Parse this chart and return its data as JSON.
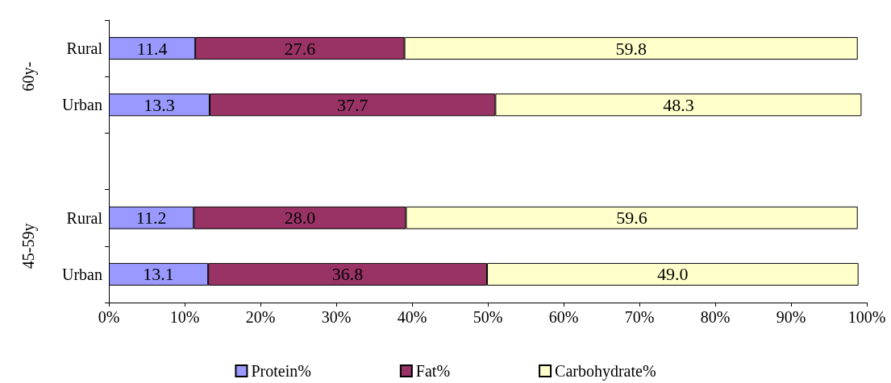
{
  "chart_data": {
    "type": "bar",
    "orientation": "horizontal",
    "stacked": true,
    "categories": [
      "Rural",
      "Urban",
      null,
      "Rural",
      "Urban"
    ],
    "series": [
      {
        "name": "Protein%",
        "color": "#9999ff",
        "values": [
          11.4,
          13.3,
          null,
          11.2,
          13.1
        ],
        "value_labels": [
          "11.4",
          "13.3",
          null,
          "11.2",
          "13.1"
        ]
      },
      {
        "name": "Fat%",
        "color": "#993366",
        "values": [
          27.6,
          37.7,
          null,
          28.0,
          36.8
        ],
        "value_labels": [
          "27.6",
          "37.7",
          null,
          "28.0",
          "36.8"
        ]
      },
      {
        "name": "Carbohydrate%",
        "color": "#ffffcc",
        "values": [
          59.8,
          48.3,
          null,
          59.6,
          49.0
        ],
        "value_labels": [
          "59.8",
          "48.3",
          null,
          "59.6",
          "49.0"
        ]
      }
    ],
    "xlim": [
      0,
      100
    ],
    "xticks": [
      {
        "value": 0,
        "label": "0%"
      },
      {
        "value": 10,
        "label": "10%"
      },
      {
        "value": 20,
        "label": "20%"
      },
      {
        "value": 30,
        "label": "30%"
      },
      {
        "value": 40,
        "label": "40%"
      },
      {
        "value": 50,
        "label": "50%"
      },
      {
        "value": 60,
        "label": "60%"
      },
      {
        "value": 70,
        "label": "70%"
      },
      {
        "value": 80,
        "label": "80%"
      },
      {
        "value": 90,
        "label": "90%"
      },
      {
        "value": 100,
        "label": "100%"
      }
    ],
    "annotations": [
      "60y-",
      "45-59y"
    ],
    "grid": false,
    "legend": "bottom"
  }
}
